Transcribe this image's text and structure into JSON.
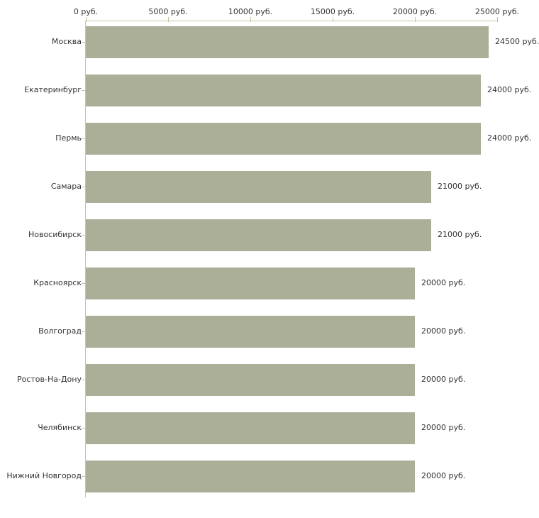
{
  "chart_data": {
    "type": "bar",
    "orientation": "horizontal",
    "title": "",
    "xlabel": "",
    "ylabel": "",
    "unit": "руб.",
    "categories": [
      "Москва",
      "Екатеринбург",
      "Пермь",
      "Самара",
      "Новосибирск",
      "Красноярск",
      "Волгоград",
      "Ростов-На-Дону",
      "Челябинск",
      "Нижний Новгород"
    ],
    "values": [
      24500,
      24000,
      24000,
      21000,
      21000,
      20000,
      20000,
      20000,
      20000,
      20000
    ],
    "value_labels": [
      "24500 руб.",
      "24000 руб.",
      "24000 руб.",
      "21000 руб.",
      "21000 руб.",
      "20000 руб.",
      "20000 руб.",
      "20000 руб.",
      "20000 руб.",
      "20000 руб."
    ],
    "xlim": [
      0,
      25000
    ],
    "x_ticks": [
      0,
      5000,
      10000,
      15000,
      20000,
      25000
    ],
    "x_tick_labels": [
      "0 руб.",
      "5000 руб.",
      "10000 руб.",
      "15000 руб.",
      "20000 руб.",
      "25000 руб."
    ],
    "grid": false,
    "legend": "none",
    "colors": {
      "bar_fill": "#abaf98",
      "value_axis_line": "#cacaa6",
      "value_axis_tick": "#c2c29c",
      "category_axis_line": "#c2c2c2",
      "category_tick": "#c2c2c2",
      "text": "#333333",
      "background": "#ffffff"
    }
  }
}
